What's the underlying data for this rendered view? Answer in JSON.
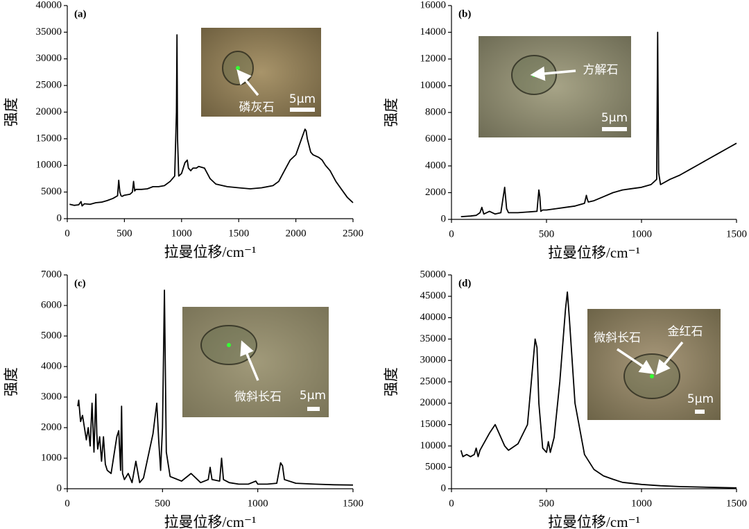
{
  "chart_data": [
    {
      "type": "line",
      "panel_label": "(a)",
      "x_label": "拉曼位移/cm⁻¹",
      "y_label": "强度",
      "color": "#000000",
      "annotations": [
        "磷灰石",
        "5μm"
      ],
      "xlim": [
        0,
        2500
      ],
      "xticks": [
        0,
        500,
        1000,
        1500,
        2000,
        2500
      ],
      "ylim": [
        0,
        40000
      ],
      "yticks": [
        0,
        5000,
        10000,
        15000,
        20000,
        25000,
        30000,
        35000,
        40000
      ],
      "x": [
        20,
        60,
        100,
        120,
        130,
        150,
        200,
        250,
        300,
        350,
        400,
        440,
        450,
        460,
        470,
        480,
        500,
        550,
        570,
        580,
        590,
        600,
        650,
        700,
        750,
        800,
        850,
        900,
        940,
        955,
        960,
        965,
        975,
        1000,
        1030,
        1050,
        1060,
        1080,
        1100,
        1130,
        1150,
        1200,
        1250,
        1300,
        1400,
        1500,
        1600,
        1700,
        1800,
        1850,
        1900,
        1950,
        2000,
        2050,
        2080,
        2090,
        2100,
        2130,
        2150,
        2200,
        2230,
        2260,
        2300,
        2350,
        2400,
        2450,
        2500
      ],
      "values": [
        2700,
        2500,
        2600,
        3200,
        2400,
        2800,
        2700,
        3000,
        3100,
        3400,
        3800,
        4300,
        7200,
        5000,
        4300,
        4200,
        4400,
        4600,
        5000,
        7000,
        5200,
        5500,
        5500,
        5600,
        6000,
        6000,
        6200,
        7000,
        8000,
        20000,
        34500,
        15000,
        8000,
        8500,
        10500,
        11000,
        9500,
        9000,
        9500,
        9500,
        9800,
        9500,
        7500,
        6500,
        6000,
        5800,
        5600,
        5800,
        6200,
        7000,
        9000,
        11000,
        12000,
        15000,
        16800,
        16500,
        15000,
        12500,
        12000,
        11500,
        11000,
        10000,
        9000,
        7000,
        5500,
        4000,
        3000
      ]
    },
    {
      "type": "line",
      "panel_label": "(b)",
      "x_label": "拉曼位移/cm⁻¹",
      "y_label": "强度",
      "color": "#000000",
      "annotations": [
        "方解石",
        "5μm"
      ],
      "xlim": [
        0,
        1500
      ],
      "xticks": [
        0,
        500,
        1000,
        1500
      ],
      "ylim": [
        0,
        16000
      ],
      "yticks": [
        0,
        2000,
        4000,
        6000,
        8000,
        10000,
        12000,
        14000,
        16000
      ],
      "x": [
        50,
        100,
        130,
        150,
        160,
        170,
        200,
        230,
        260,
        280,
        290,
        300,
        350,
        400,
        450,
        460,
        465,
        470,
        480,
        500,
        550,
        600,
        650,
        700,
        710,
        715,
        720,
        750,
        800,
        850,
        900,
        950,
        1000,
        1050,
        1080,
        1085,
        1090,
        1100,
        1150,
        1200,
        1250,
        1300,
        1350,
        1400,
        1450,
        1500
      ],
      "values": [
        200,
        250,
        300,
        500,
        900,
        400,
        600,
        400,
        500,
        2400,
        800,
        500,
        500,
        550,
        600,
        2200,
        1700,
        600,
        700,
        700,
        800,
        900,
        1000,
        1200,
        1800,
        1500,
        1300,
        1400,
        1700,
        2000,
        2200,
        2300,
        2400,
        2600,
        3000,
        14000,
        3500,
        2600,
        3000,
        3300,
        3700,
        4100,
        4500,
        4900,
        5300,
        5700
      ]
    },
    {
      "type": "line",
      "panel_label": "(c)",
      "x_label": "拉曼位移/cm⁻¹",
      "y_label": "强度",
      "color": "#000000",
      "annotations": [
        "微斜长石",
        "5μm"
      ],
      "xlim": [
        0,
        1500
      ],
      "xticks": [
        0,
        500,
        1000,
        1500
      ],
      "ylim": [
        0,
        7000
      ],
      "yticks": [
        0,
        1000,
        2000,
        3000,
        4000,
        5000,
        6000,
        7000
      ],
      "x": [
        55,
        60,
        70,
        80,
        100,
        110,
        120,
        130,
        140,
        150,
        155,
        160,
        170,
        180,
        190,
        200,
        210,
        230,
        260,
        270,
        280,
        285,
        290,
        300,
        320,
        340,
        360,
        380,
        400,
        450,
        460,
        470,
        480,
        490,
        500,
        510,
        520,
        540,
        580,
        600,
        650,
        700,
        740,
        750,
        760,
        800,
        810,
        820,
        850,
        900,
        950,
        990,
        1000,
        1050,
        1100,
        1120,
        1130,
        1140,
        1200,
        1300,
        1400,
        1500
      ],
      "values": [
        2700,
        2900,
        2200,
        2400,
        1600,
        2000,
        1400,
        2800,
        1200,
        3100,
        1800,
        1300,
        1700,
        900,
        1700,
        800,
        600,
        500,
        1700,
        1900,
        600,
        2700,
        500,
        300,
        500,
        200,
        900,
        200,
        350,
        1800,
        2300,
        2800,
        1600,
        600,
        2000,
        6500,
        1200,
        400,
        300,
        250,
        500,
        200,
        300,
        700,
        300,
        250,
        1000,
        300,
        200,
        150,
        150,
        250,
        150,
        150,
        180,
        850,
        750,
        300,
        180,
        150,
        130,
        120
      ]
    },
    {
      "type": "line",
      "panel_label": "(d)",
      "x_label": "拉曼位移/cm⁻¹",
      "y_label": "强度",
      "color": "#000000",
      "annotations": [
        "微斜长石",
        "金红石",
        "5μm"
      ],
      "xlim": [
        0,
        1500
      ],
      "xticks": [
        0,
        500,
        1000,
        1500
      ],
      "ylim": [
        0,
        50000
      ],
      "yticks": [
        0,
        5000,
        10000,
        15000,
        20000,
        25000,
        30000,
        35000,
        40000,
        45000,
        50000
      ],
      "x": [
        50,
        60,
        80,
        100,
        120,
        130,
        140,
        150,
        200,
        230,
        250,
        280,
        300,
        350,
        400,
        420,
        440,
        450,
        460,
        480,
        500,
        510,
        520,
        540,
        570,
        600,
        610,
        620,
        650,
        700,
        750,
        800,
        850,
        900,
        1000,
        1100,
        1200,
        1300,
        1400,
        1500
      ],
      "values": [
        9000,
        7500,
        8000,
        7500,
        8000,
        9500,
        7500,
        9000,
        13000,
        15000,
        13000,
        10000,
        9000,
        10500,
        15000,
        25000,
        35000,
        33000,
        20000,
        9500,
        8500,
        11000,
        8500,
        12000,
        25000,
        42000,
        46000,
        40000,
        20000,
        8000,
        4500,
        3000,
        2200,
        1500,
        1000,
        700,
        500,
        400,
        300,
        200
      ]
    }
  ]
}
